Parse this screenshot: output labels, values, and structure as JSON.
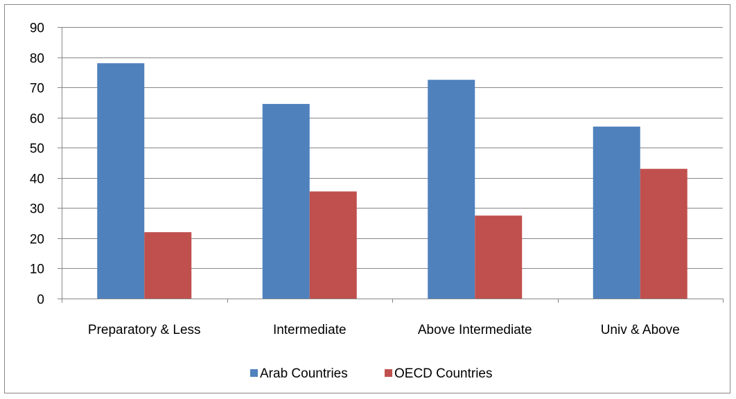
{
  "chart_data": {
    "type": "bar",
    "categories": [
      "Preparatory & Less",
      "Intermediate",
      "Above Intermediate",
      "Univ & Above"
    ],
    "series": [
      {
        "name": "Arab Countries",
        "values": [
          78,
          64.5,
          72.5,
          57
        ],
        "color": "#4F81BD"
      },
      {
        "name": "OECD Countries",
        "values": [
          22,
          35.5,
          27.5,
          43
        ],
        "color": "#C0504D"
      }
    ],
    "ylim": [
      0,
      90
    ],
    "yticks": [
      0,
      10,
      20,
      30,
      40,
      50,
      60,
      70,
      80,
      90
    ],
    "grid": true,
    "legend_position": "bottom"
  }
}
